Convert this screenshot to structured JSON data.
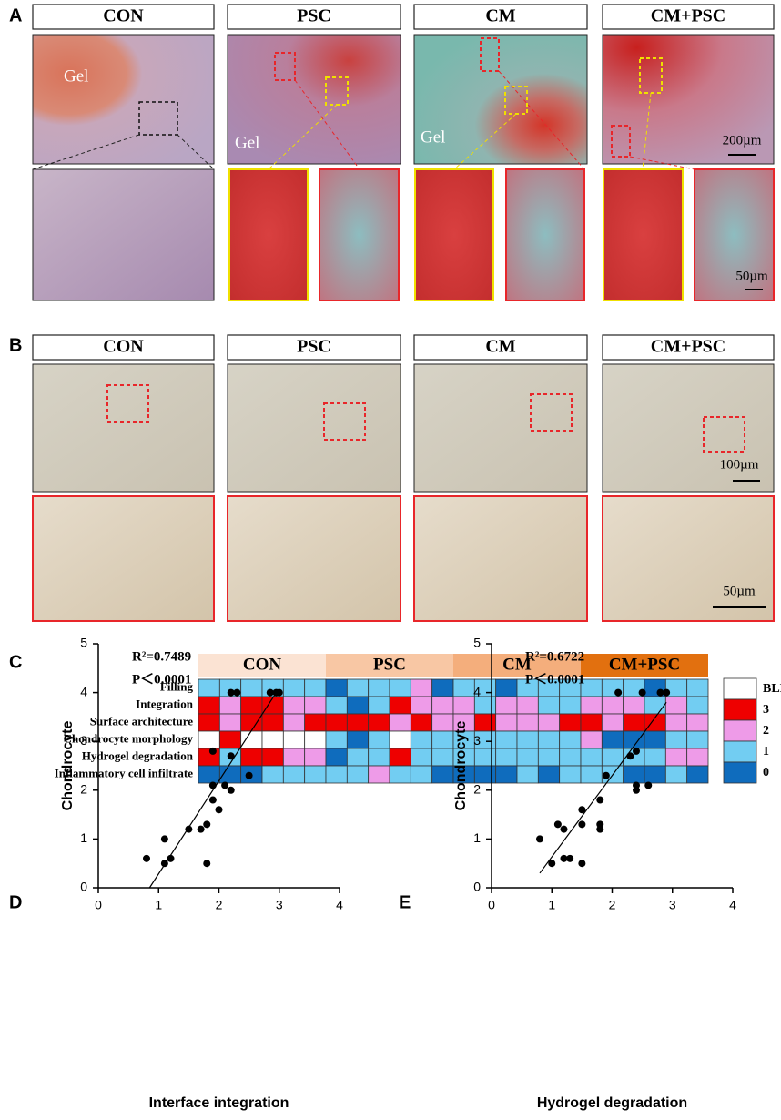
{
  "figure": {
    "panel_labels": [
      "A",
      "B",
      "C",
      "D",
      "E"
    ],
    "groups": [
      "CON",
      "PSC",
      "CM",
      "CM+PSC"
    ],
    "gel_labels": [
      "Gel",
      "Gel",
      "Gel"
    ],
    "panel_a_scales": [
      "200µm",
      "50µm"
    ],
    "panel_b_scales": [
      "100µm",
      "50µm"
    ]
  },
  "chart_data": [
    {
      "type": "heatmap",
      "rows": [
        "Filling",
        "Integration",
        "Surface architecture",
        "Chondrocyte morphology",
        "Hydrogel degradation",
        "Inflammatory cell infiltrate"
      ],
      "groups": [
        {
          "name": "CON",
          "color": "#fbe3d3"
        },
        {
          "name": "PSC",
          "color": "#f8c7a4"
        },
        {
          "name": "CM",
          "color": "#f4ae7c"
        },
        {
          "name": "CM+PSC",
          "color": "#e2700f"
        }
      ],
      "legend": [
        {
          "value": null,
          "label": "BLK",
          "color": "#ffffff"
        },
        {
          "value": 3,
          "color": "#ee0000"
        },
        {
          "value": 2,
          "color": "#ee9be8"
        },
        {
          "value": 1,
          "color": "#72cdf2"
        },
        {
          "value": 0,
          "color": "#0f6cbd"
        }
      ],
      "values": [
        [
          1,
          1,
          1,
          1,
          1,
          1,
          0,
          1,
          1,
          1,
          2,
          0,
          1,
          1,
          0,
          1,
          1,
          1,
          1,
          1,
          1,
          0,
          1,
          1
        ],
        [
          3,
          2,
          3,
          3,
          2,
          2,
          1,
          0,
          1,
          3,
          2,
          2,
          2,
          1,
          2,
          2,
          1,
          1,
          2,
          2,
          2,
          1,
          2,
          1
        ],
        [
          3,
          2,
          3,
          3,
          2,
          3,
          3,
          3,
          3,
          2,
          3,
          2,
          2,
          3,
          2,
          2,
          2,
          3,
          3,
          2,
          3,
          3,
          2,
          2
        ],
        [
          null,
          3,
          null,
          null,
          null,
          null,
          1,
          0,
          1,
          null,
          1,
          1,
          1,
          1,
          1,
          1,
          1,
          1,
          2,
          0,
          0,
          0,
          1,
          1
        ],
        [
          3,
          1,
          3,
          3,
          2,
          2,
          0,
          1,
          1,
          3,
          1,
          1,
          1,
          1,
          1,
          1,
          1,
          1,
          1,
          1,
          1,
          1,
          2,
          2
        ],
        [
          0,
          0,
          0,
          1,
          1,
          1,
          1,
          1,
          2,
          1,
          1,
          0,
          0,
          0,
          0,
          1,
          0,
          1,
          1,
          1,
          0,
          0,
          1,
          0
        ]
      ]
    },
    {
      "type": "scatter",
      "xlabel": "Interface integration",
      "ylabel": "Chondrocyte",
      "annotations": [
        "R²=0.7489",
        "P＜0.0001"
      ],
      "x": [
        0.8,
        1.1,
        1.2,
        1.1,
        1.5,
        1.7,
        1.8,
        1.8,
        1.9,
        1.9,
        2.0,
        2.1,
        2.2,
        2.2,
        1.9,
        2.5,
        2.2,
        2.3,
        2.85,
        2.95,
        3.0
      ],
      "y": [
        0.6,
        0.5,
        0.6,
        1.0,
        1.2,
        1.2,
        1.3,
        0.5,
        1.8,
        2.1,
        1.6,
        2.1,
        2.0,
        2.7,
        2.8,
        2.3,
        4.0,
        4.0,
        4.0,
        4.0,
        4.0
      ],
      "fit": {
        "x": [
          0.85,
          2.95
        ],
        "y": [
          0,
          4.0
        ]
      },
      "xlim": [
        0,
        4
      ],
      "ylim": [
        0,
        5
      ],
      "xticks": [
        0,
        1,
        2,
        3,
        4
      ],
      "yticks": [
        0,
        1,
        2,
        3,
        4,
        5
      ],
      "color": "#000000"
    },
    {
      "type": "scatter",
      "xlabel": "Hydrogel degradation",
      "ylabel": "Chondrocyte",
      "annotations": [
        "R²=0.6722",
        "P＜0.0001"
      ],
      "x": [
        0.8,
        1.0,
        1.1,
        1.2,
        1.2,
        1.3,
        1.5,
        1.5,
        1.5,
        1.8,
        1.8,
        1.8,
        1.9,
        2.1,
        2.3,
        2.4,
        2.4,
        2.4,
        2.5,
        2.6,
        2.8,
        2.9
      ],
      "y": [
        1.0,
        0.5,
        1.3,
        0.6,
        1.2,
        0.6,
        0.5,
        1.6,
        1.3,
        1.2,
        1.3,
        1.8,
        2.3,
        4.0,
        2.7,
        2.8,
        2.1,
        2.0,
        4.0,
        2.1,
        4.0,
        4.0
      ],
      "fit": {
        "x": [
          0.8,
          2.9
        ],
        "y": [
          0.3,
          3.8
        ]
      },
      "xlim": [
        0,
        4
      ],
      "ylim": [
        0,
        5
      ],
      "xticks": [
        0,
        1,
        2,
        3,
        4
      ],
      "yticks": [
        0,
        1,
        2,
        3,
        4,
        5
      ],
      "color": "#000000"
    }
  ]
}
